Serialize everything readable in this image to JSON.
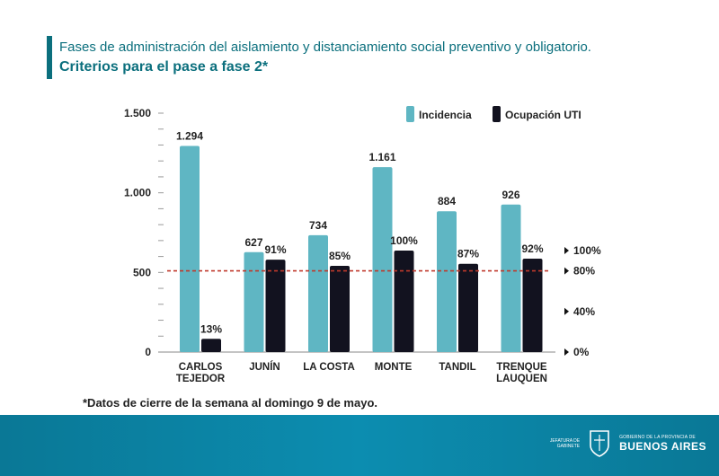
{
  "header": {
    "line1": "Fases de administración del aislamiento y distanciamiento social preventivo y obligatorio.",
    "line2": "Criterios para el pase a fase 2*"
  },
  "chart_data": {
    "type": "bar",
    "categories": [
      [
        "CARLOS",
        "TEJEDOR"
      ],
      [
        "JUNÍN"
      ],
      [
        "LA COSTA"
      ],
      [
        "MONTE"
      ],
      [
        "TANDIL"
      ],
      [
        "TRENQUE",
        "LAUQUEN"
      ]
    ],
    "series": [
      {
        "name": "Incidencia",
        "axis": "left",
        "values": [
          1294,
          627,
          734,
          1161,
          884,
          926
        ],
        "labels": [
          "1.294",
          "627",
          "734",
          "1.161",
          "884",
          "926"
        ],
        "color": "#5fb6c3"
      },
      {
        "name": "Ocupación UTI",
        "axis": "right",
        "values": [
          13,
          91,
          85,
          100,
          87,
          92
        ],
        "labels": [
          "13%",
          "91%",
          "85%",
          "100%",
          "87%",
          "92%"
        ],
        "color": "#12121f"
      }
    ],
    "left_axis": {
      "min": 0,
      "max": 1500,
      "ticks": [
        0,
        500,
        1000,
        1500
      ],
      "tick_labels": [
        "0",
        "500",
        "1.000",
        "1.500"
      ]
    },
    "right_axis": {
      "min": 0,
      "max": 100,
      "ticks": [
        0,
        40,
        80,
        100
      ],
      "tick_labels": [
        "0%",
        "40%",
        "80%",
        "100%"
      ]
    },
    "threshold": {
      "axis": "right",
      "value": 80,
      "style": "dashed",
      "color": "#c0392b"
    },
    "legend": [
      "Incidencia",
      "Ocupación UTI"
    ],
    "legend_position": "top-right"
  },
  "footnote": "*Datos de cierre de la semana al domingo 9 de mayo.",
  "footer": {
    "jefatura": "JEFATURA DE GABINETE",
    "gobierno": "GOBIERNO DE LA PROVINCIA DE",
    "provincia": "BUENOS AIRES"
  }
}
